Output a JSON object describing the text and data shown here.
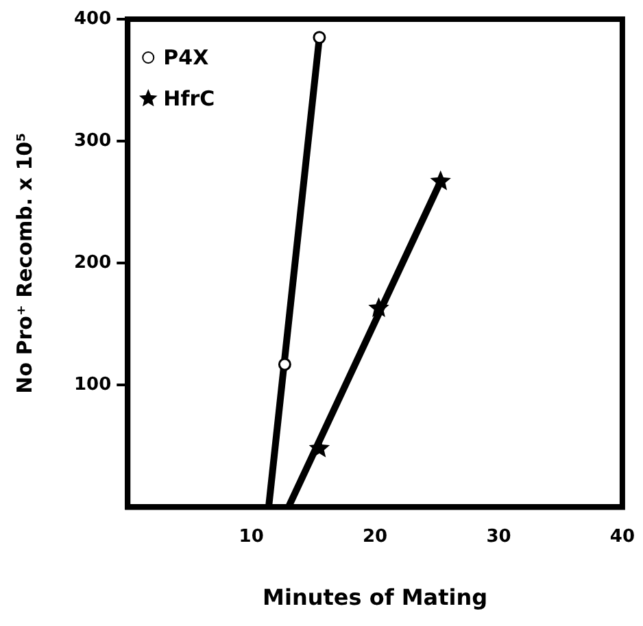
{
  "chart_data": {
    "type": "scatter",
    "xlabel": "Minutes of Mating",
    "ylabel": "No Pro⁺ Recomb. x 10⁵",
    "xlim": [
      0,
      40
    ],
    "ylim": [
      0,
      400
    ],
    "xticks": [
      10,
      20,
      30,
      40
    ],
    "yticks": [
      100,
      200,
      300,
      400
    ],
    "grid": false,
    "legend": "top left",
    "series": [
      {
        "name": "P4X",
        "type": "scatter",
        "marker": "circle",
        "color": "#000000",
        "x": [
          12.7,
          15.5
        ],
        "values": [
          117,
          385
        ]
      },
      {
        "name": "HfrC",
        "type": "scatter",
        "marker": "star",
        "color": "#000000",
        "x": [
          15.5,
          20.3,
          25.3
        ],
        "values": [
          48,
          163,
          267
        ]
      },
      {
        "type": "line",
        "color": "#000000",
        "x": [
          11.4,
          15.5
        ],
        "values": [
          0,
          385
        ]
      },
      {
        "type": "line",
        "color": "#000000",
        "x": [
          13,
          25.3
        ],
        "values": [
          0,
          267
        ]
      }
    ]
  }
}
